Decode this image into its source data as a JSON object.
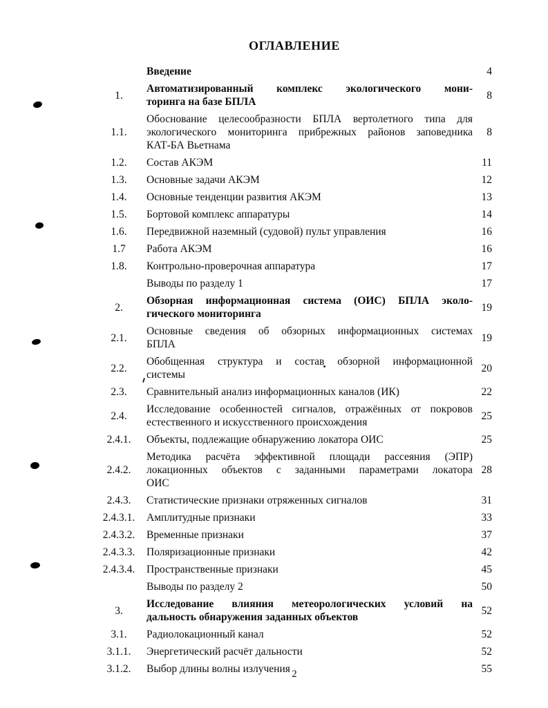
{
  "document": {
    "title": "ОГЛАВЛЕНИЕ",
    "footer_page_number": "2"
  },
  "toc": {
    "entries": [
      {
        "num": "",
        "bold": true,
        "lines": [
          "Введение"
        ],
        "page": "4"
      },
      {
        "num": "1.",
        "bold": true,
        "lines": [
          "Автоматизированный  комплекс экологического  мони-",
          "торинга на  базе БПЛА"
        ],
        "page": "8"
      },
      {
        "num": "1.1.",
        "bold": false,
        "lines": [
          "Обоснование  целесообразности   БПЛА  вертолетного  типа  для",
          "экологического мониторинга прибрежных районов заповедника",
          "КАТ-БА Вьетнама"
        ],
        "page": "8"
      },
      {
        "num": "1.2.",
        "bold": false,
        "lines": [
          "Состав АКЭМ"
        ],
        "page": "11"
      },
      {
        "num": "1.3.",
        "bold": false,
        "lines": [
          "Основные задачи АКЭМ"
        ],
        "page": "12"
      },
      {
        "num": "1.4.",
        "bold": false,
        "lines": [
          "Основные тенденции развития АКЭМ"
        ],
        "page": "13"
      },
      {
        "num": "1.5.",
        "bold": false,
        "lines": [
          "Бортовой комплекс аппаратуры"
        ],
        "page": "14"
      },
      {
        "num": "1.6.",
        "bold": false,
        "lines": [
          "Передвижной наземный  (судовой) пульт управления"
        ],
        "page": "16"
      },
      {
        "num": "1.7",
        "bold": false,
        "lines": [
          "Работа АКЭМ"
        ],
        "page": "16"
      },
      {
        "num": "1.8.",
        "bold": false,
        "lines": [
          "Контрольно-проверочная аппаратура"
        ],
        "page": "17"
      },
      {
        "num": "",
        "bold": false,
        "lines": [
          "Выводы по разделу 1"
        ],
        "page": "17"
      },
      {
        "num": "2.",
        "bold": true,
        "lines": [
          "Обзорная  информационная  система  (ОИС)  БПЛА  эколо-",
          "гического мониторинга"
        ],
        "page": "19"
      },
      {
        "num": "2.1.",
        "bold": false,
        "lines": [
          "Основные  сведения  об  обзорных  информационных  системах",
          "БПЛА"
        ],
        "page": "19"
      },
      {
        "num": "2.2.",
        "bold": false,
        "lines": [
          "Обобщенная  структура  и  состав  обзорной  информационной",
          "системы"
        ],
        "page": "20"
      },
      {
        "num": "2.3.",
        "bold": false,
        "lines": [
          "Сравнительный анализ  информационных каналов (ИК)"
        ],
        "page": "22"
      },
      {
        "num": "2.4.",
        "bold": false,
        "lines": [
          "Исследование особенностей сигналов, отражённых от покровов",
          "естественного и искусственного происхождения"
        ],
        "page": "25"
      },
      {
        "num": "2.4.1.",
        "bold": false,
        "lines": [
          "Объекты, подлежащие обнаружению локатора ОИС"
        ],
        "page": "25"
      },
      {
        "num": "2.4.2.",
        "bold": false,
        "lines": [
          "Методика  расчёта  эффективной  площади  рассеяния  (ЭПР)",
          "локационных  объектов  с  заданными  параметрами  локатора",
          "ОИС"
        ],
        "page": "28"
      },
      {
        "num": "2.4.3.",
        "bold": false,
        "lines": [
          "Статистические признаки отряженных сигналов"
        ],
        "page": "31"
      },
      {
        "num": "2.4.3.1.",
        "bold": false,
        "lines": [
          "Амплитудные признаки"
        ],
        "page": "33"
      },
      {
        "num": "2.4.3.2.",
        "bold": false,
        "lines": [
          "Временные признаки"
        ],
        "page": "37"
      },
      {
        "num": "2.4.3.3.",
        "bold": false,
        "lines": [
          "Поляризационные признаки"
        ],
        "page": "42"
      },
      {
        "num": "2.4.3.4.",
        "bold": false,
        "lines": [
          "Пространственные признаки"
        ],
        "page": "45"
      },
      {
        "num": "",
        "bold": false,
        "lines": [
          "Выводы по разделу 2"
        ],
        "page": "50"
      },
      {
        "num": "3.",
        "bold": true,
        "lines": [
          "Исследование  влияния  метеорологических  условий  на",
          "дальность обнаружения заданных объектов"
        ],
        "page": "52"
      },
      {
        "num": "3.1.",
        "bold": false,
        "lines": [
          "Радиолокационный канал"
        ],
        "page": "52"
      },
      {
        "num": "3.1.1.",
        "bold": false,
        "lines": [
          "Энергетический расчёт дальности"
        ],
        "page": "52"
      },
      {
        "num": "3.1.2.",
        "bold": false,
        "lines": [
          "Выбор длины волны излучения"
        ],
        "page": "55"
      }
    ]
  }
}
